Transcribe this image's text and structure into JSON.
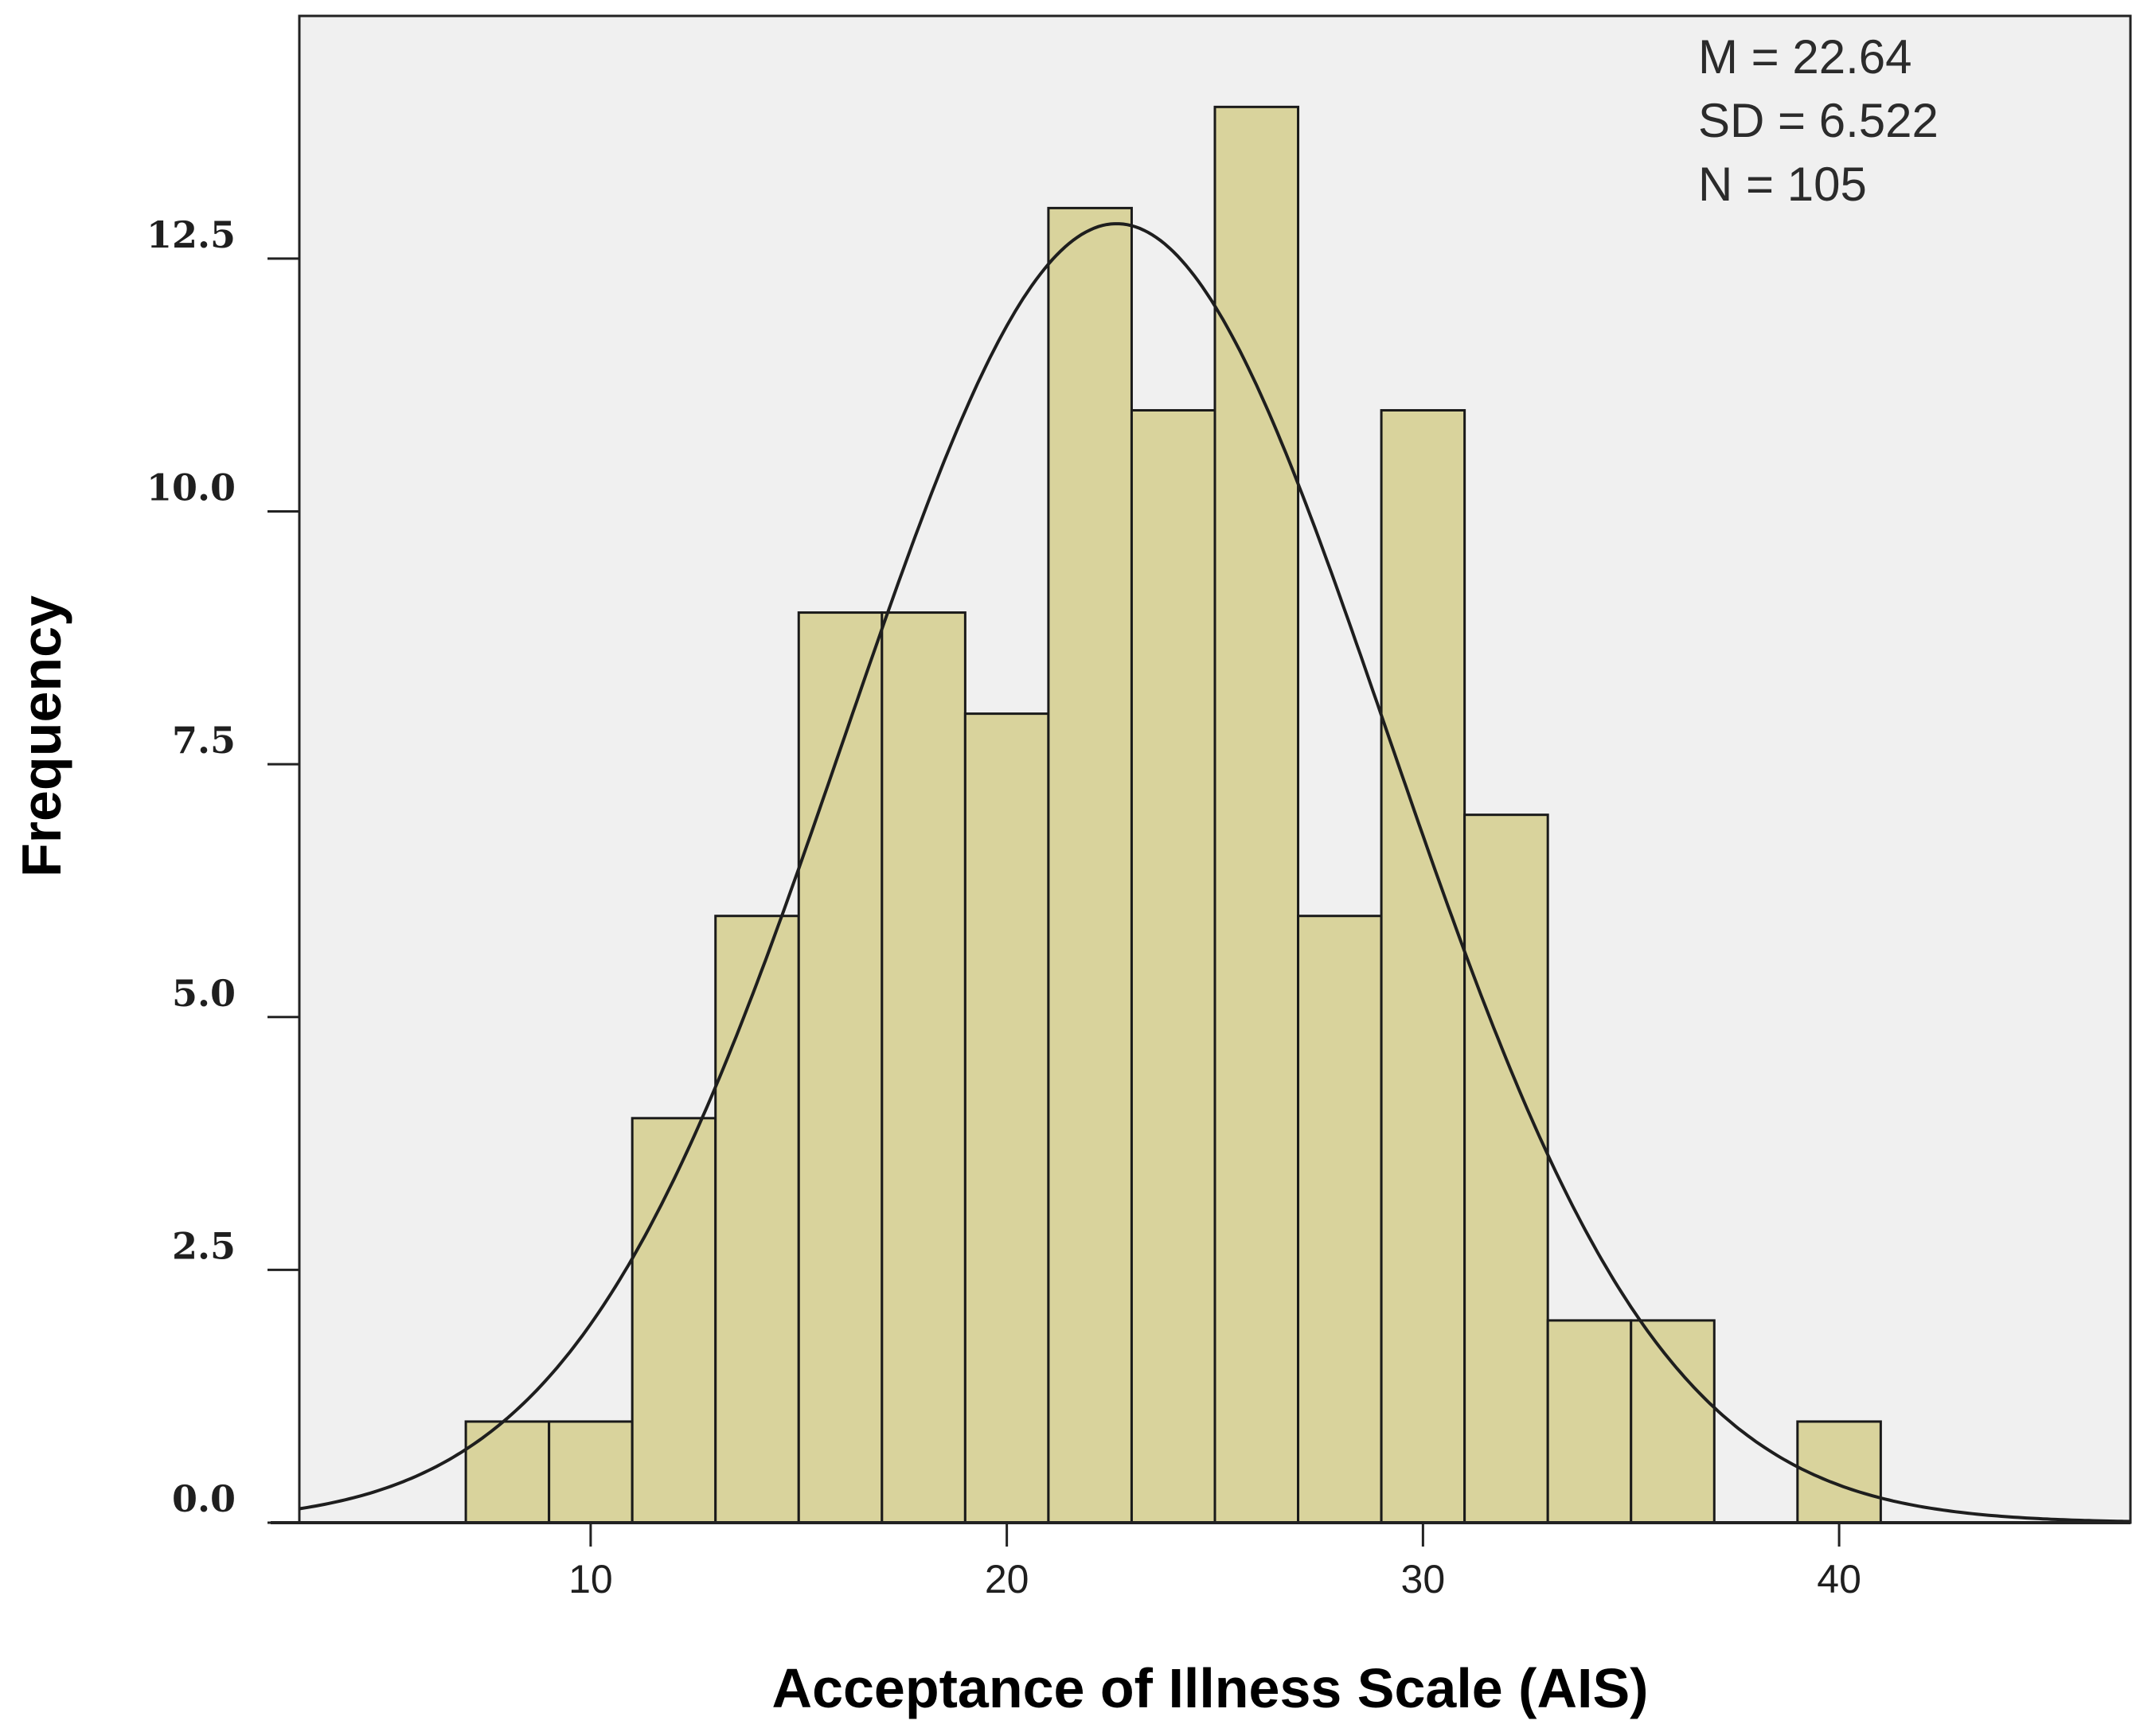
{
  "chart_data": {
    "type": "bar",
    "subtype": "histogram",
    "xlabel": "Acceptance of Illness Scale (AIS)",
    "ylabel": "Frequency",
    "xlim": [
      3,
      47
    ],
    "ylim": [
      0,
      14.9
    ],
    "x_ticks": [
      10,
      20,
      30,
      40
    ],
    "y_ticks": [
      0,
      2.5,
      5,
      7.5,
      10,
      12.5
    ],
    "y_tick_labels": [
      "0.0",
      "2.5",
      "5.0",
      "7.5",
      "10.0",
      "12.5"
    ],
    "bin_width": 2,
    "bins": [
      {
        "start": 7,
        "end": 9,
        "count": 1
      },
      {
        "start": 9,
        "end": 11,
        "count": 1
      },
      {
        "start": 11,
        "end": 13,
        "count": 4
      },
      {
        "start": 13,
        "end": 15,
        "count": 6
      },
      {
        "start": 15,
        "end": 17,
        "count": 9
      },
      {
        "start": 17,
        "end": 19,
        "count": 9
      },
      {
        "start": 19,
        "end": 21,
        "count": 8
      },
      {
        "start": 21,
        "end": 23,
        "count": 13
      },
      {
        "start": 23,
        "end": 25,
        "count": 11
      },
      {
        "start": 25,
        "end": 27,
        "count": 14
      },
      {
        "start": 27,
        "end": 29,
        "count": 6
      },
      {
        "start": 29,
        "end": 31,
        "count": 11
      },
      {
        "start": 31,
        "end": 33,
        "count": 7
      },
      {
        "start": 33,
        "end": 35,
        "count": 2
      },
      {
        "start": 35,
        "end": 37,
        "count": 2
      },
      {
        "start": 37,
        "end": 39,
        "count": 0
      },
      {
        "start": 39,
        "end": 41,
        "count": 1
      }
    ],
    "normal_curve": {
      "mean": 22.64,
      "sd": 6.522,
      "n": 105
    },
    "stats_lines": [
      "M = 22.64",
      "SD = 6.522",
      "N = 105"
    ],
    "bar_color": "#d9d39c",
    "plot_background": "#f0f0f0",
    "grid": false
  }
}
